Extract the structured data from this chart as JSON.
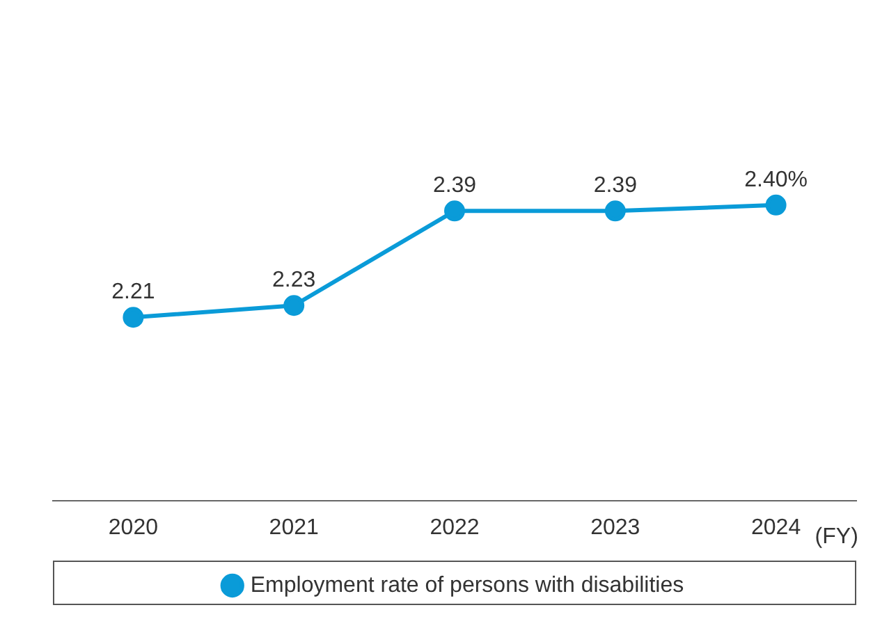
{
  "chart_data": {
    "type": "line",
    "categories": [
      "2020",
      "2021",
      "2022",
      "2023",
      "2024"
    ],
    "series": [
      {
        "name": "Employment rate of persons with disabilities",
        "color": "#0a9bd8",
        "values": [
          2.21,
          2.23,
          2.39,
          2.39,
          2.4
        ],
        "value_labels": [
          "2.21",
          "2.23",
          "2.39",
          "2.39",
          "2.40%"
        ]
      }
    ],
    "xlabel": "(FY)",
    "marker": "circle",
    "line_style": "solid",
    "grid": false,
    "legend": "bottom"
  }
}
